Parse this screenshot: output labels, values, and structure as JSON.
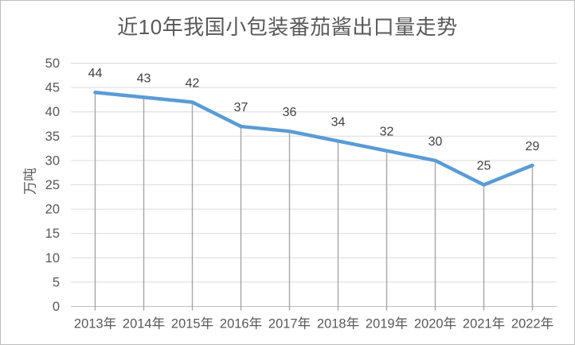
{
  "chart_data": {
    "type": "line",
    "title": "近10年我国小包装番茄酱出口量走势",
    "ylabel": "万吨",
    "xlabel": "",
    "categories": [
      "2013年",
      "2014年",
      "2015年",
      "2016年",
      "2017年",
      "2018年",
      "2019年",
      "2020年",
      "2021年",
      "2022年"
    ],
    "values": [
      44,
      43,
      42,
      37,
      36,
      34,
      32,
      30,
      25,
      29
    ],
    "data_labels": [
      "44",
      "43",
      "42",
      "37",
      "36",
      "34",
      "32",
      "30",
      "25",
      "29"
    ],
    "ylim": [
      0,
      50
    ],
    "yticks": [
      0,
      5,
      10,
      15,
      20,
      25,
      30,
      35,
      40,
      45,
      50
    ],
    "grid": "horizontal",
    "drop_lines": true,
    "data_labels_position": "above",
    "legend": "none",
    "colors": {
      "line": "#5B9BD5",
      "gridline": "#DADADA",
      "axis_line": "#BFBFBF",
      "drop_line": "#A6A6A6",
      "data_label": "#404040",
      "tick_label": "#595959",
      "title": "#595959",
      "background": "#FFFFFF",
      "frame_border": "#BDBDBD"
    }
  }
}
